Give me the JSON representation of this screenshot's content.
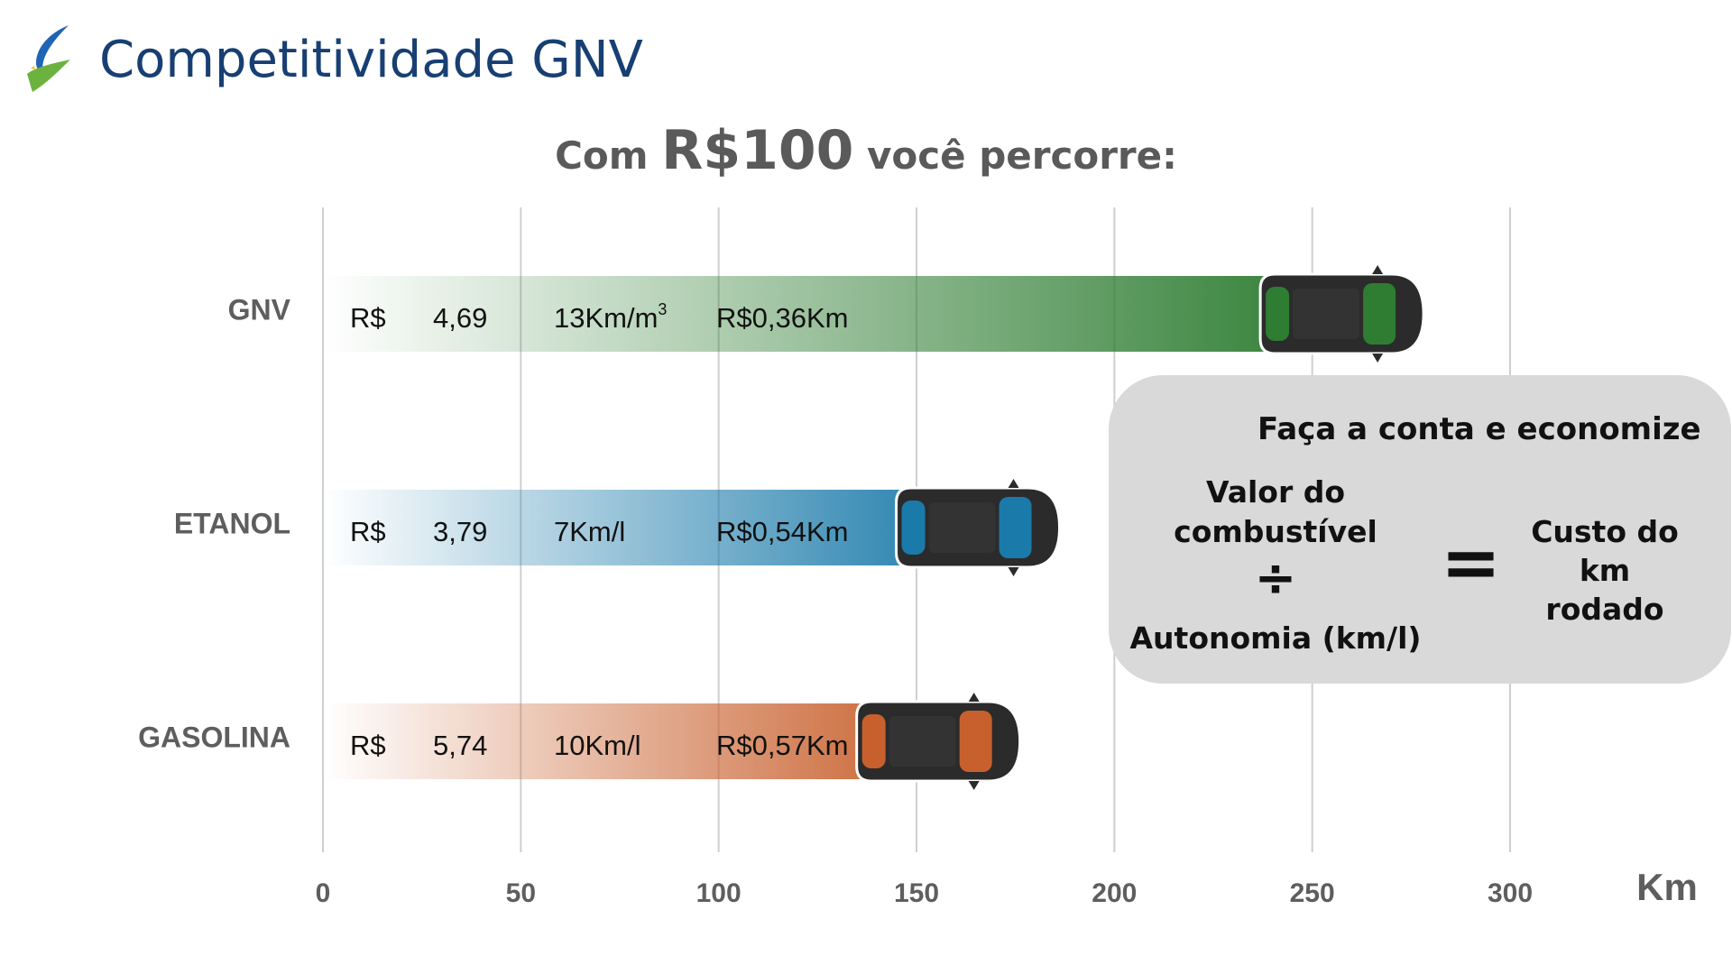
{
  "header": {
    "title": "Competitividade GNV"
  },
  "subtitle": {
    "prefix": "Com",
    "amount": "R$100",
    "suffix": "você percorre:"
  },
  "chart_data": {
    "type": "bar",
    "orientation": "horizontal",
    "categories": [
      "GNV",
      "ETANOL",
      "GASOLINA"
    ],
    "values": [
      277,
      185,
      175
    ],
    "xlim": [
      0,
      300
    ],
    "xticks": [
      0,
      50,
      100,
      150,
      200,
      250,
      300
    ],
    "xlabel": "Km",
    "grid": true,
    "rows": [
      {
        "currency": "R$",
        "price": "4,69",
        "efficiency": "13Km/m",
        "efficiency_sup": "3",
        "cost_per_km": "R$0,36Km",
        "color": "#2e7d32"
      },
      {
        "currency": "R$",
        "price": "3,79",
        "efficiency": "7Km/l",
        "efficiency_sup": "",
        "cost_per_km": "R$0,54Km",
        "color": "#1a7aaa"
      },
      {
        "currency": "R$",
        "price": "5,74",
        "efficiency": "10Km/l",
        "efficiency_sup": "",
        "cost_per_km": "R$0,57Km",
        "color": "#c8602d"
      }
    ]
  },
  "info_box": {
    "title": "Faça a conta e economize",
    "left_line1": "Valor do",
    "left_line2": "combustível",
    "divide_symbol": "÷",
    "left_bottom": "Autonomia (km/l)",
    "equals_symbol": "=",
    "right_line1": "Custo do",
    "right_line2": "km",
    "right_line3": "rodado"
  },
  "icons": {
    "logo": "flame-leaf-logo",
    "vehicle": "car-top-view-icon"
  }
}
